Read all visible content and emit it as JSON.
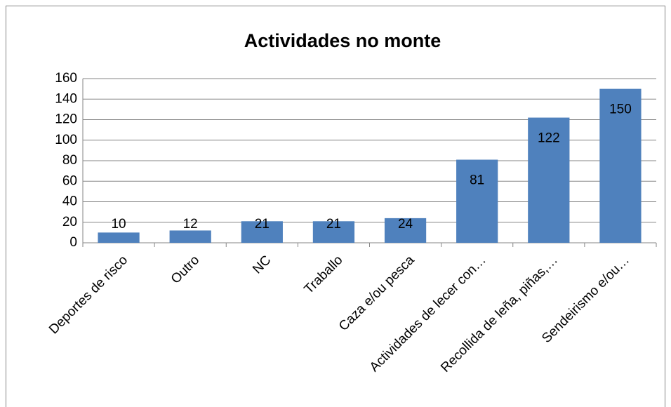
{
  "chart_data": {
    "type": "bar",
    "title": "Actividades no monte",
    "categories": [
      "Deportes de risco",
      "Outro",
      "NC",
      "Traballo",
      "Caza e/ou pesca",
      "Actividades de lecer con…",
      "Recollida de leña, piñas,…",
      "Sendeirismo e/ou…"
    ],
    "values": [
      10,
      12,
      21,
      21,
      24,
      81,
      122,
      150
    ],
    "color": "#4f81bd",
    "ylim": [
      0,
      160
    ],
    "yticks": [
      0,
      20,
      40,
      60,
      80,
      100,
      120,
      140,
      160
    ],
    "grid": true
  }
}
